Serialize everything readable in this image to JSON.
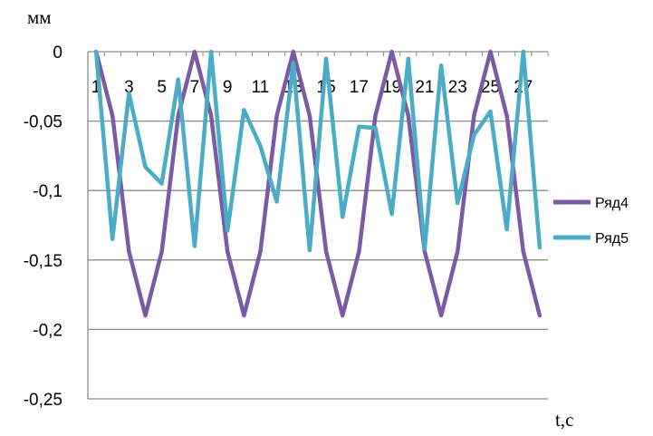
{
  "chart_data": {
    "type": "line",
    "ylabel": "мм",
    "xlabel": "t,с",
    "ylim": [
      -0.25,
      0
    ],
    "yticks": [
      0,
      -0.05,
      -0.1,
      -0.15,
      -0.2,
      -0.25
    ],
    "ytick_labels": [
      "0",
      "-0,05",
      "-0,1",
      "-0,15",
      "-0,2",
      "-0,25"
    ],
    "xticks": [
      1,
      3,
      5,
      7,
      9,
      11,
      13,
      15,
      17,
      19,
      21,
      23,
      25,
      27
    ],
    "xtick_labels": [
      "1",
      "3",
      "5",
      "7",
      "9",
      "11",
      "13",
      "15",
      "17",
      "19",
      "21",
      "23",
      "25",
      "27"
    ],
    "xlim": [
      0.5,
      28.5
    ],
    "grid": "horizontal",
    "legend_position": "right",
    "series": [
      {
        "name": "Ряд4",
        "color": "#7b5aa6",
        "x": [
          1,
          2,
          3,
          4,
          5,
          6,
          7,
          8,
          9,
          10,
          11,
          12,
          13,
          14,
          15,
          16,
          17,
          18,
          19,
          20,
          21,
          22,
          23,
          24,
          25,
          26,
          27,
          28
        ],
        "values": [
          0,
          -0.046,
          -0.144,
          -0.19,
          -0.144,
          -0.046,
          0,
          -0.046,
          -0.144,
          -0.19,
          -0.144,
          -0.046,
          0,
          -0.046,
          -0.144,
          -0.19,
          -0.144,
          -0.046,
          0,
          -0.046,
          -0.144,
          -0.19,
          -0.144,
          -0.046,
          0,
          -0.046,
          -0.144,
          -0.19
        ]
      },
      {
        "name": "Ряд5",
        "color": "#4bacc6",
        "x": [
          1,
          2,
          3,
          4,
          5,
          6,
          7,
          8,
          9,
          10,
          11,
          12,
          13,
          14,
          15,
          16,
          17,
          18,
          19,
          20,
          21,
          22,
          23,
          24,
          25,
          26,
          27,
          28
        ],
        "values": [
          0,
          -0.135,
          -0.03,
          -0.083,
          -0.095,
          -0.02,
          -0.14,
          0,
          -0.129,
          -0.042,
          -0.068,
          -0.108,
          -0.008,
          -0.143,
          -0.005,
          -0.119,
          -0.054,
          -0.055,
          -0.117,
          -0.005,
          -0.142,
          -0.01,
          -0.109,
          -0.06,
          -0.043,
          -0.128,
          0,
          -0.141
        ]
      }
    ]
  }
}
